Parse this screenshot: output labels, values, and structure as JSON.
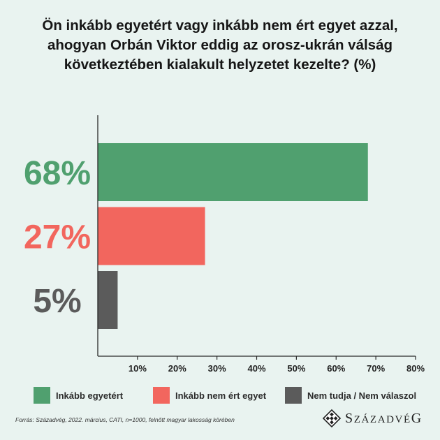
{
  "chart_data": {
    "type": "bar",
    "orientation": "horizontal",
    "title": "Ön inkább egyetért vagy inkább nem ért egyet azzal,\nahogyan Orbán Viktor eddig az orosz-ukrán válság\nkövetkeztében kialakult helyzetet kezelte? (%)",
    "categories": [
      "Inkább egyetért",
      "Inkább nem ért egyet",
      "Nem tudja / Nem válaszol"
    ],
    "values": [
      68,
      27,
      5
    ],
    "data_labels": [
      "68%",
      "27%",
      "5%"
    ],
    "colors": [
      "#50a06f",
      "#f2665e",
      "#5b5b5b"
    ],
    "xlim": [
      0,
      80
    ],
    "xticks": [
      10,
      20,
      30,
      40,
      50,
      60,
      70,
      80
    ],
    "xtick_labels": [
      "10%",
      "20%",
      "30%",
      "40%",
      "50%",
      "60%",
      "70%",
      "80%"
    ],
    "grid": false,
    "legend": "bottom"
  },
  "source": "Forrás: Századvég, 2022. március, CATI, n=1000, felnőtt magyar lakosság körében",
  "logo": {
    "text": "SZÁZADVÉG",
    "icon": "diamond-logo-icon"
  },
  "background_color": "#e9f3f0"
}
